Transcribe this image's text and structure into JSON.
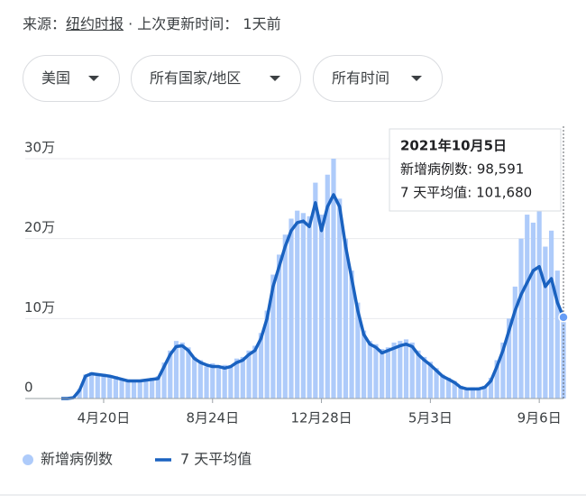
{
  "header": {
    "source_label": "来源：",
    "source": "纽约时报",
    "updated_label": "· 上次更新时间：",
    "updated": "1天前"
  },
  "filters": [
    "美国",
    "所有国家/地区",
    "所有时间"
  ],
  "chart_data": {
    "type": "combo",
    "categories": [
      null,
      null,
      null,
      null,
      null,
      null,
      null,
      "4月20日",
      null,
      null,
      null,
      null,
      null,
      null,
      null,
      null,
      null,
      null,
      null,
      null,
      null,
      null,
      null,
      null,
      null,
      "8月24日",
      null,
      null,
      null,
      null,
      null,
      null,
      null,
      null,
      null,
      null,
      null,
      null,
      null,
      null,
      null,
      null,
      null,
      "12月28日",
      null,
      null,
      null,
      null,
      null,
      null,
      null,
      null,
      null,
      null,
      null,
      null,
      null,
      null,
      null,
      null,
      null,
      "5月3日",
      null,
      null,
      null,
      null,
      null,
      null,
      null,
      null,
      null,
      null,
      null,
      null,
      null,
      null,
      null,
      null,
      null,
      "9月6日",
      null,
      null,
      null,
      null
    ],
    "series": [
      {
        "name": "新增病例数",
        "mark": "bar",
        "color": "#aecbfa",
        "values": [
          0,
          200,
          1500,
          12000,
          30000,
          33000,
          29000,
          31000,
          27000,
          28000,
          23000,
          24000,
          21000,
          23000,
          22000,
          26000,
          28000,
          45000,
          60000,
          72000,
          70000,
          64000,
          52000,
          48000,
          40000,
          44000,
          38000,
          42000,
          41000,
          50000,
          52000,
          60000,
          66000,
          82000,
          110000,
          155000,
          180000,
          205000,
          225000,
          235000,
          232000,
          228000,
          270000,
          230000,
          280000,
          300000,
          250000,
          200000,
          160000,
          120000,
          85000,
          72000,
          68000,
          62000,
          64000,
          70000,
          72000,
          74000,
          70000,
          60000,
          52000,
          46000,
          38000,
          30000,
          26000,
          22000,
          16000,
          13000,
          14000,
          14000,
          16000,
          26000,
          48000,
          70000,
          100000,
          140000,
          200000,
          230000,
          220000,
          235000,
          190000,
          210000,
          160000,
          98591
        ]
      },
      {
        "name": "7 天平均值",
        "mark": "line",
        "color": "#1a62c0",
        "values": [
          0,
          0,
          1000,
          10000,
          28000,
          31000,
          30000,
          29000,
          28000,
          26000,
          24000,
          22000,
          22000,
          22000,
          23000,
          24000,
          25000,
          40000,
          55000,
          65000,
          66000,
          60000,
          50000,
          45000,
          42000,
          40000,
          40000,
          38000,
          40000,
          45000,
          48000,
          55000,
          60000,
          75000,
          100000,
          140000,
          165000,
          190000,
          210000,
          220000,
          222000,
          215000,
          245000,
          210000,
          240000,
          255000,
          240000,
          190000,
          150000,
          110000,
          80000,
          68000,
          64000,
          57000,
          60000,
          63000,
          66000,
          68000,
          65000,
          55000,
          48000,
          42000,
          35000,
          28000,
          24000,
          20000,
          14000,
          12000,
          12000,
          12000,
          14000,
          22000,
          40000,
          60000,
          85000,
          110000,
          130000,
          145000,
          160000,
          165000,
          140000,
          150000,
          120000,
          101680
        ]
      }
    ],
    "ylim": [
      0,
      300000
    ],
    "yticks": [
      0,
      {
        "value": 100000,
        "label": "10万"
      },
      {
        "value": 200000,
        "label": "20万"
      },
      {
        "value": 300000,
        "label": "30万"
      }
    ],
    "grid": true,
    "tooltip": {
      "title": "2021年10月5日",
      "lines": [
        "新增病例数: 98,591",
        "7 天平均值: 101,680"
      ]
    }
  }
}
